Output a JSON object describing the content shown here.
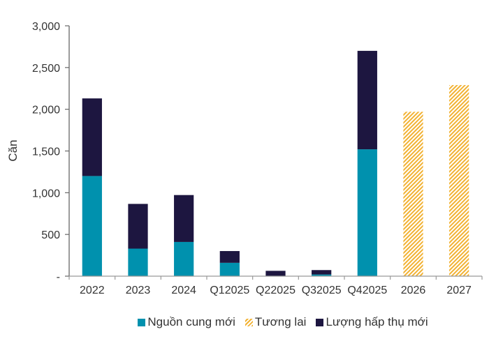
{
  "chart_data": {
    "type": "bar",
    "stacked": true,
    "title": "",
    "xlabel": "",
    "ylabel": "Căn",
    "ylim": [
      0,
      3000
    ],
    "yticks": [
      0,
      500,
      1000,
      1500,
      2000,
      2500,
      3000
    ],
    "ytick_labels": [
      "-",
      "500",
      "1,000",
      "1,500",
      "2,000",
      "2,500",
      "3,000"
    ],
    "categories": [
      "2022",
      "2023",
      "2024",
      "Q12025",
      "Q22025",
      "Q32025",
      "Q42025",
      "2026",
      "2027"
    ],
    "series": [
      {
        "name": "Nguồn cung mới",
        "color": "#0091AE",
        "values": [
          1200,
          330,
          410,
          160,
          0,
          20,
          1520,
          null,
          null
        ]
      },
      {
        "name": "Lượng hấp thụ mới",
        "color": "#1D1640",
        "values": [
          930,
          536,
          562,
          141,
          64,
          53,
          1180,
          null,
          null
        ]
      },
      {
        "name": "Tương lai",
        "color": "#F2B233",
        "pattern": "hatch",
        "values": [
          null,
          null,
          null,
          null,
          null,
          null,
          null,
          1970,
          2290
        ]
      }
    ],
    "legend": {
      "position": "bottom",
      "entries": [
        "Nguồn cung mới",
        "Tương lai",
        "Lượng hấp thụ mới"
      ]
    },
    "grid": false
  }
}
